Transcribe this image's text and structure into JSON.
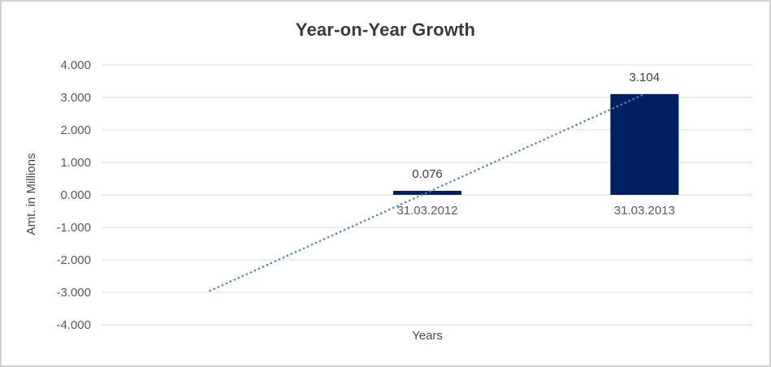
{
  "chart_data": {
    "type": "bar",
    "title": "Year-on-Year Growth",
    "xlabel": "Years",
    "ylabel": "Amt. in Millions",
    "ylim": [
      -4,
      4
    ],
    "ytick_step": 1,
    "ytick_labels": [
      "4.000",
      "3.000",
      "2.000",
      "1.000",
      "0.000",
      "-1.000",
      "-2.000",
      "-3.000",
      "-4.000"
    ],
    "grid": "horizontal",
    "legend": "none",
    "n_slots": 3,
    "bars": [
      {
        "label": "31.03.2012",
        "value": 0.076,
        "data_label": "0.076",
        "slot": 1
      },
      {
        "label": "31.03.2013",
        "value": 3.104,
        "data_label": "3.104",
        "slot": 2
      }
    ],
    "trendline": {
      "type": "linear-dotted",
      "from_slot": 0,
      "from_value": -2.952,
      "to_slot": 2,
      "to_value": 3.104
    },
    "colors": {
      "bar": "#002060",
      "trendline": "#4e87c8",
      "gridline": "#d9d9d9",
      "title_text": "#3a3a3a",
      "tick_text": "#595959",
      "category_text": "#595959",
      "data_label_text": "#3f3f3f",
      "border": "#d2d2d2",
      "background": "#ffffff"
    }
  }
}
